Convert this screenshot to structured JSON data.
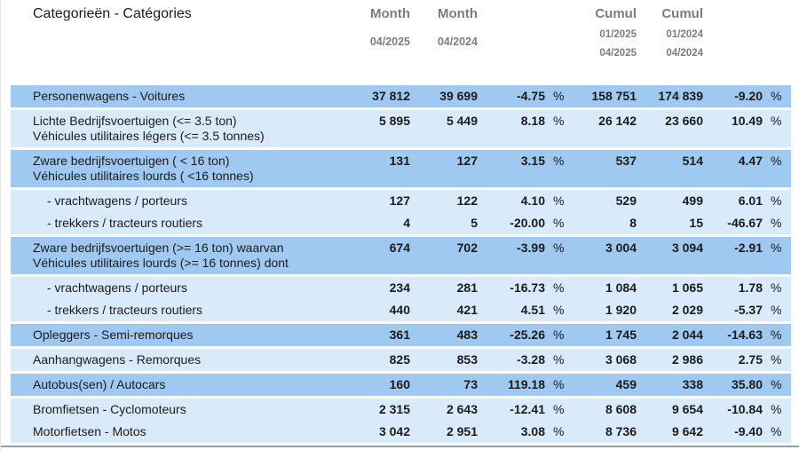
{
  "colors": {
    "band_medium": "#9fc9f0",
    "band_light": "#d9eafb",
    "header_text": "#7d7d7d",
    "body_text": "#1b1b1b",
    "bottom_rule": "#8fa0ad"
  },
  "percent_sign": "%",
  "header": {
    "category_label": "Categorieën - Catégories",
    "columns": [
      {
        "title": "Month",
        "sub": [
          "04/2025"
        ]
      },
      {
        "title": "Month",
        "sub": [
          "04/2024"
        ]
      },
      {
        "title": "Cumul",
        "sub": [
          "01/2025",
          "04/2025"
        ]
      },
      {
        "title": "Cumul",
        "sub": [
          "01/2024",
          "04/2024"
        ]
      }
    ]
  },
  "bands": [
    {
      "shade": "medium",
      "rows": [
        {
          "lines": [
            "Personenwagens - Voitures"
          ],
          "values": [
            "37 812",
            "39 699",
            "-4.75",
            "158 751",
            "174 839",
            "-9.20"
          ]
        }
      ]
    },
    {
      "shade": "light",
      "rows": [
        {
          "lines": [
            "Lichte Bedrijfsvoertuigen (<= 3.5 ton)",
            "Véhicules utilitaires légers (<= 3.5 tonnes)"
          ],
          "values": [
            "5 895",
            "5 449",
            "8.18",
            "26 142",
            "23 660",
            "10.49"
          ]
        }
      ]
    },
    {
      "shade": "medium",
      "rows": [
        {
          "lines": [
            "Zware bedrijfsvoertuigen ( < 16 ton)",
            "Véhicules utilitaires lourds ( <16 tonnes)"
          ],
          "values": [
            "131",
            "127",
            "3.15",
            "537",
            "514",
            "4.47"
          ]
        }
      ]
    },
    {
      "shade": "light",
      "rows": [
        {
          "lines": [
            "- vrachtwagens / porteurs"
          ],
          "sub": true,
          "values": [
            "127",
            "122",
            "4.10",
            "529",
            "499",
            "6.01"
          ]
        },
        {
          "lines": [
            "- trekkers / tracteurs routiers"
          ],
          "sub": true,
          "values": [
            "4",
            "5",
            "-20.00",
            "8",
            "15",
            "-46.67"
          ]
        }
      ]
    },
    {
      "shade": "medium",
      "rows": [
        {
          "lines": [
            "Zware bedrijfsvoertuigen (>= 16 ton) waarvan",
            "Véhicules utilitaires lourds (>= 16 tonnes) dont"
          ],
          "values": [
            "674",
            "702",
            "-3.99",
            "3 004",
            "3 094",
            "-2.91"
          ]
        }
      ]
    },
    {
      "shade": "light",
      "rows": [
        {
          "lines": [
            "- vrachtwagens / porteurs"
          ],
          "sub": true,
          "values": [
            "234",
            "281",
            "-16.73",
            "1 084",
            "1 065",
            "1.78"
          ]
        },
        {
          "lines": [
            "- trekkers / tracteurs routiers"
          ],
          "sub": true,
          "values": [
            "440",
            "421",
            "4.51",
            "1 920",
            "2 029",
            "-5.37"
          ]
        }
      ]
    },
    {
      "shade": "medium",
      "rows": [
        {
          "lines": [
            "Opleggers - Semi-remorques"
          ],
          "values": [
            "361",
            "483",
            "-25.26",
            "1 745",
            "2 044",
            "-14.63"
          ]
        }
      ]
    },
    {
      "shade": "light",
      "rows": [
        {
          "lines": [
            "Aanhangwagens - Remorques"
          ],
          "values": [
            "825",
            "853",
            "-3.28",
            "3 068",
            "2 986",
            "2.75"
          ]
        }
      ]
    },
    {
      "shade": "medium",
      "rows": [
        {
          "lines": [
            "Autobus(sen) / Autocars"
          ],
          "values": [
            "160",
            "73",
            "119.18",
            "459",
            "338",
            "35.80"
          ]
        }
      ]
    },
    {
      "shade": "light",
      "rows": [
        {
          "lines": [
            "Bromfietsen - Cyclomoteurs"
          ],
          "values": [
            "2 315",
            "2 643",
            "-12.41",
            "8 608",
            "9 654",
            "-10.84"
          ]
        },
        {
          "lines": [
            "Motorfietsen - Motos"
          ],
          "values": [
            "3 042",
            "2 951",
            "3.08",
            "8 736",
            "9 642",
            "-9.40"
          ]
        }
      ]
    }
  ]
}
